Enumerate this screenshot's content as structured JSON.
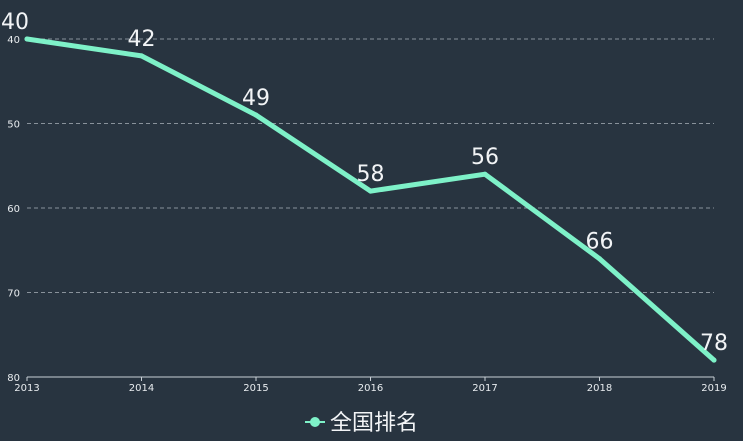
{
  "chart_data": {
    "type": "line",
    "categories": [
      "2013",
      "2014",
      "2015",
      "2016",
      "2017",
      "2018",
      "2019"
    ],
    "series": [
      {
        "name": "全国排名",
        "values": [
          40,
          42,
          49,
          58,
          56,
          66,
          78
        ]
      }
    ],
    "ylim": [
      40,
      80
    ],
    "y_inverted": true,
    "yticks": [
      "40",
      "50",
      "60",
      "70",
      "80"
    ],
    "grid": true,
    "legend": "bottom-center",
    "show_data_labels": true,
    "colors": {
      "line": "#7ef1c8",
      "background": "#283440"
    }
  }
}
